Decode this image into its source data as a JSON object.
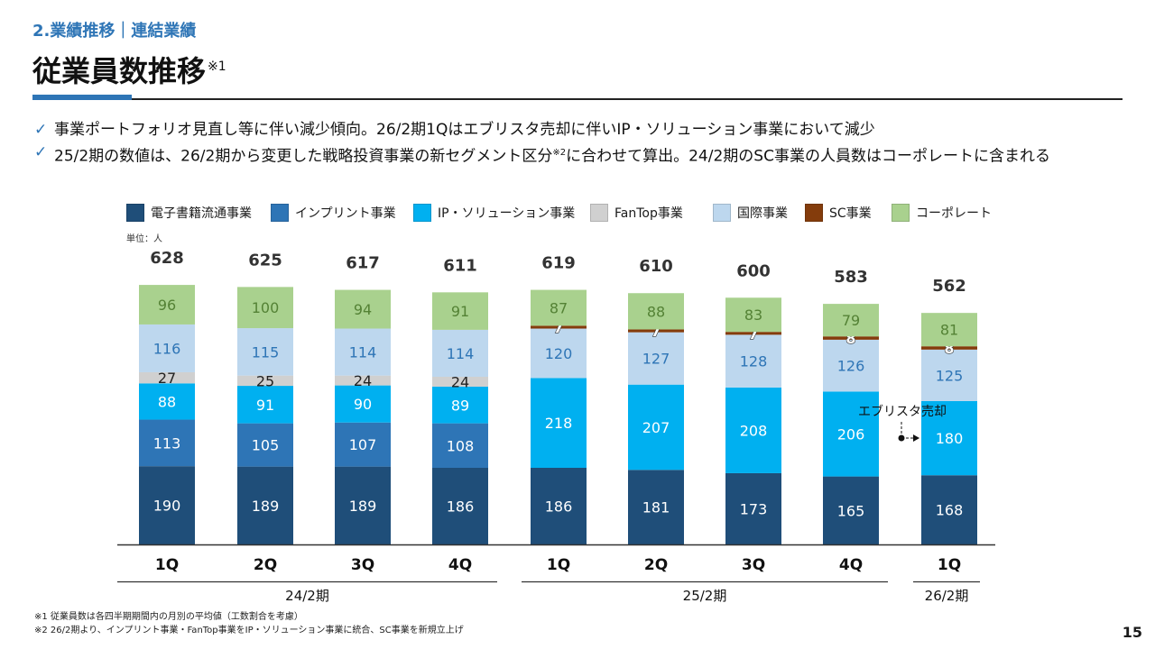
{
  "header": {
    "section": "2.業績推移｜連結業績",
    "title": "従業員数推移",
    "title_note": "※1"
  },
  "bullets": [
    {
      "text": "事業ポートフォリオ見直し等に伴い減少傾向。26/2期1Qはエブリスタ売却に伴いIP・ソリューション事業において減少"
    },
    {
      "text_a": "25/2期の数値は、26/2期から変更した戦略投資事業の新セグメント区分",
      "sup": "※2",
      "text_b": "に合わせて算出。24/2期のSC事業の人員数はコーポレートに含まれる"
    }
  ],
  "check_glyph": "✓",
  "footnotes": [
    "※1 従業員数は各四半期期間内の月別の平均値（工数割合を考慮）",
    "※2 26/2期より、インプリント事業・FanTop事業をIP・ソリューション事業に統合、SC事業を新規立上げ"
  ],
  "page_number": "15",
  "chart_data": {
    "type": "bar",
    "stacked": true,
    "unit_label": "単位：人",
    "categories": [
      "1Q",
      "2Q",
      "3Q",
      "4Q",
      "1Q",
      "2Q",
      "3Q",
      "4Q",
      "1Q"
    ],
    "groups": [
      {
        "label": "24/2期",
        "range": [
          0,
          3
        ]
      },
      {
        "label": "25/2期",
        "range": [
          4,
          7
        ]
      },
      {
        "label": "26/2期",
        "range": [
          8,
          8
        ]
      }
    ],
    "totals": [
      628,
      625,
      617,
      611,
      619,
      610,
      600,
      583,
      562
    ],
    "series": [
      {
        "name": "電子書籍流通事業",
        "color": "#1f4e79",
        "label_color": "#ffffff",
        "values": [
          190,
          189,
          189,
          186,
          186,
          181,
          173,
          165,
          168
        ]
      },
      {
        "name": "インプリント事業",
        "color": "#2e75b6",
        "label_color": "#ffffff",
        "values": [
          113,
          105,
          107,
          108,
          null,
          null,
          null,
          null,
          null
        ]
      },
      {
        "name": "IP・ソリューション事業",
        "color": "#00b0f0",
        "label_color": "#ffffff",
        "values": [
          88,
          91,
          90,
          89,
          218,
          207,
          208,
          206,
          180
        ]
      },
      {
        "name": "FanTop事業",
        "color": "#d0d0d0",
        "label_color": "#222222",
        "values": [
          27,
          25,
          24,
          24,
          null,
          null,
          null,
          null,
          null
        ]
      },
      {
        "name": "国際事業",
        "color": "#bdd7ee",
        "label_color": "#2e75b6",
        "values": [
          116,
          115,
          114,
          114,
          120,
          127,
          128,
          126,
          125
        ]
      },
      {
        "name": "SC事業",
        "color": "#843c0c",
        "label_color": "#222222",
        "values": [
          null,
          null,
          null,
          null,
          7,
          7,
          7,
          8,
          8
        ]
      },
      {
        "name": "コーポレート",
        "color": "#a9d18e",
        "label_color": "#548235",
        "values": [
          96,
          100,
          94,
          91,
          87,
          88,
          83,
          79,
          81
        ]
      }
    ],
    "annotation": {
      "text": "エブリスタ売却",
      "from_index": 7,
      "to_index": 8,
      "series": "IP・ソリューション事業"
    },
    "ylim": [
      0,
      700
    ],
    "legend_position": "top"
  }
}
